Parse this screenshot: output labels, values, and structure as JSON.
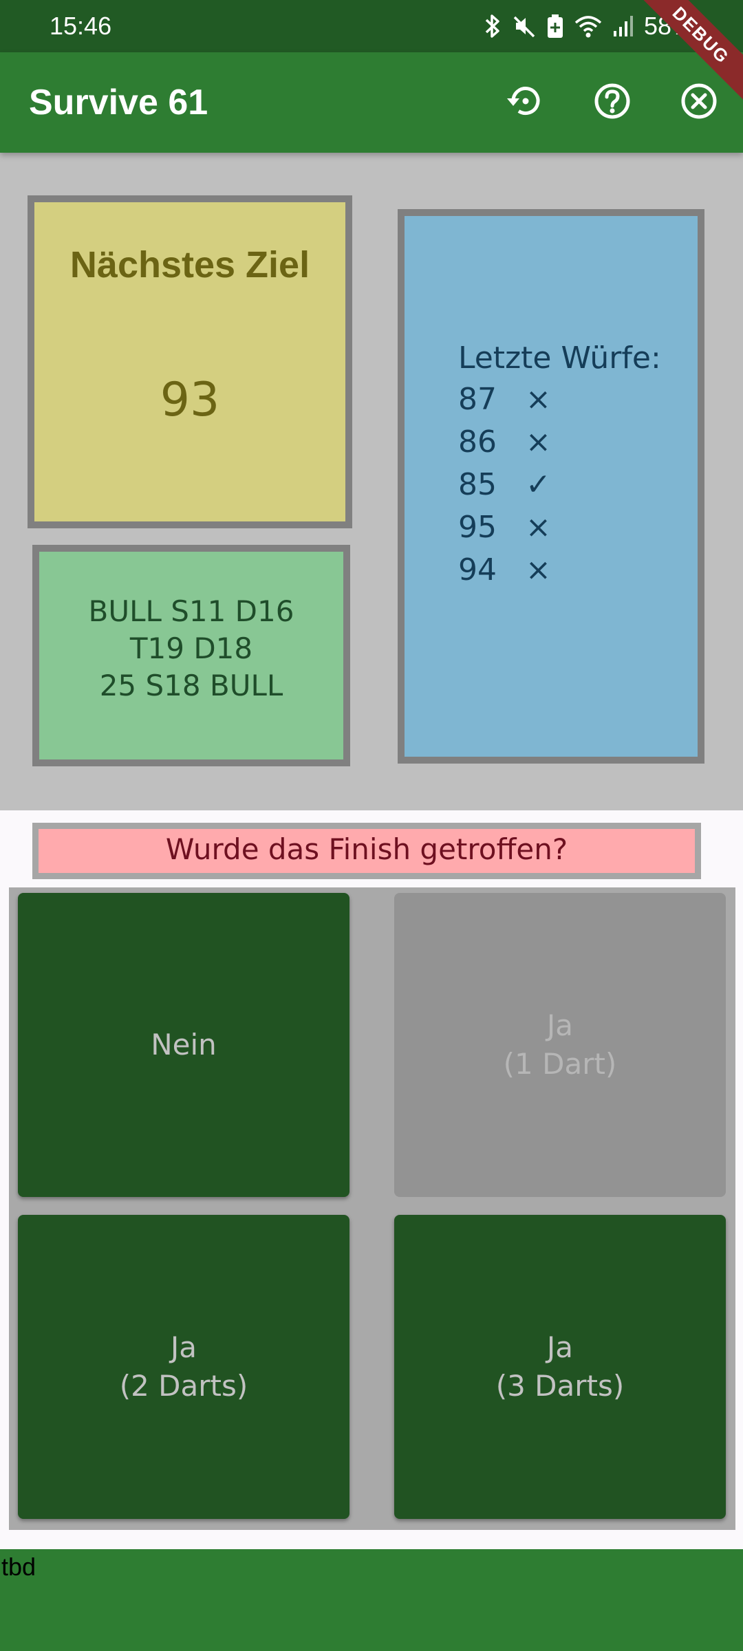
{
  "status_bar": {
    "time": "15:46",
    "battery_percent": "58%",
    "icons": [
      "bluetooth-icon",
      "mute-icon",
      "battery-saver-icon",
      "wifi-icon",
      "signal-icon"
    ]
  },
  "debug_banner": {
    "label": "DEBUG"
  },
  "app_bar": {
    "title": "Survive 61",
    "actions": [
      "restart-icon",
      "help-icon",
      "close-icon"
    ],
    "color": "#2e7d32"
  },
  "target": {
    "label": "Nächstes Ziel",
    "value": "93"
  },
  "finish_suggestion": {
    "lines": [
      "BULL S11 D16",
      "T19 D18",
      "25 S18 BULL"
    ]
  },
  "history": {
    "title": "Letzte Würfe:",
    "rows": [
      {
        "value": "87",
        "mark": "×"
      },
      {
        "value": "86",
        "mark": "×"
      },
      {
        "value": "85",
        "mark": "✓"
      },
      {
        "value": "95",
        "mark": "×"
      },
      {
        "value": "94",
        "mark": "×"
      }
    ]
  },
  "question": {
    "text": "Wurde das Finish getroffen?"
  },
  "answers": {
    "no": {
      "label": "Nein",
      "enabled": true
    },
    "yes_1": {
      "label": "Ja\n(1 Dart)",
      "enabled": false
    },
    "yes_2": {
      "label": "Ja\n(2 Darts)",
      "enabled": true
    },
    "yes_3": {
      "label": "Ja\n(3 Darts)",
      "enabled": true
    }
  },
  "footer": {
    "text": "tbd"
  }
}
